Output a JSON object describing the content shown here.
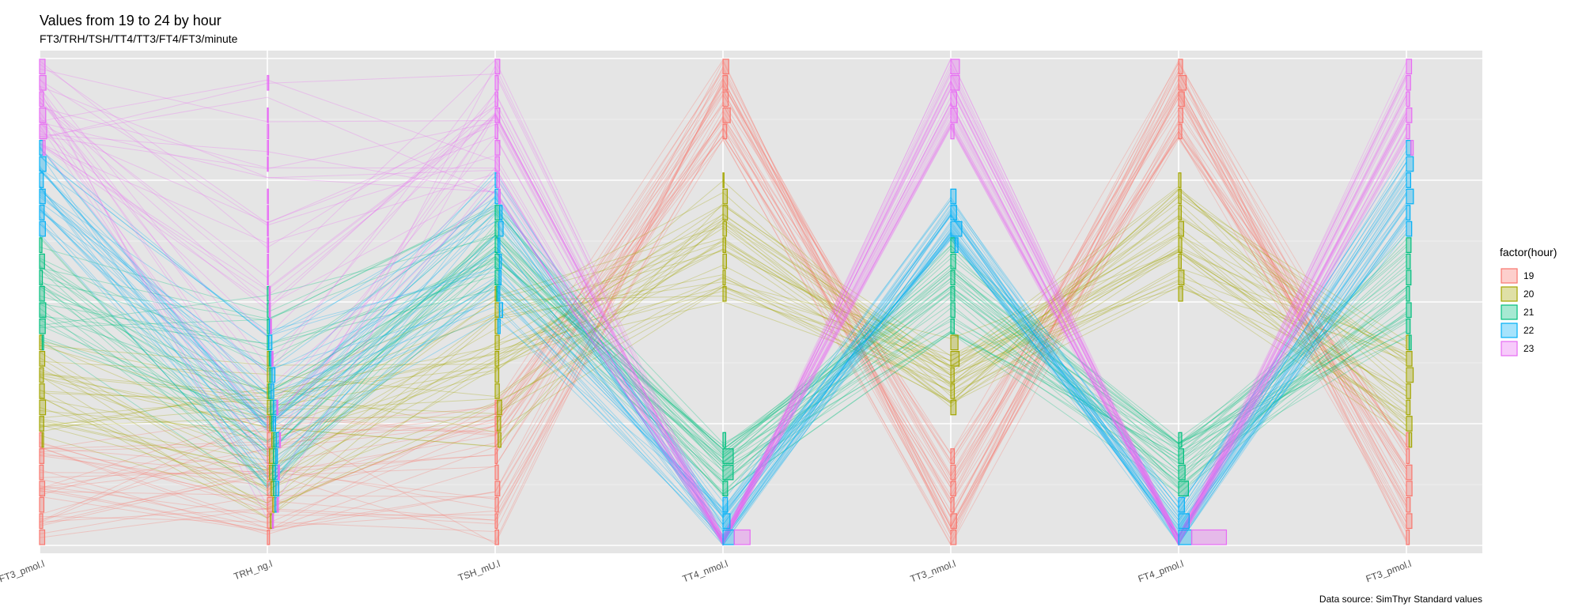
{
  "chart_data": {
    "type": "parallel-coordinates",
    "title": "Values from 19 to 24 by hour",
    "subtitle": "FT3/TRH/TSH/TT4/TT3/FT4/FT3/minute",
    "caption": "Data source: SimThyr Standard values",
    "axes": [
      "FT3_pmol.l",
      "TRH_ng.l",
      "TSH_mU.l",
      "TT4_nmol.l",
      "TT3_nmol.l",
      "FT4_pmol.l",
      "FT3_pmol.l"
    ],
    "ylim": [
      0,
      1
    ],
    "grid": true,
    "legend": {
      "title": "factor(hour)",
      "placement": "right",
      "entries": [
        "19",
        "20",
        "21",
        "22",
        "23"
      ]
    },
    "series_colors": {
      "19": "#F8766D",
      "20": "#A3A500",
      "21": "#00BF7D",
      "22": "#00B0F6",
      "23": "#E76BF3"
    },
    "series": [
      {
        "name": "19",
        "ranges": [
          [
            0.0,
            0.22
          ],
          [
            0.02,
            0.27
          ],
          [
            0.0,
            0.3
          ],
          [
            0.83,
            1.0
          ],
          [
            0.0,
            0.19
          ],
          [
            0.83,
            1.0
          ],
          [
            0.0,
            0.22
          ]
        ]
      },
      {
        "name": "20",
        "ranges": [
          [
            0.22,
            0.42
          ],
          [
            0.05,
            0.4
          ],
          [
            0.2,
            0.52
          ],
          [
            0.5,
            0.75
          ],
          [
            0.27,
            0.43
          ],
          [
            0.5,
            0.75
          ],
          [
            0.22,
            0.42
          ]
        ]
      },
      {
        "name": "21",
        "ranges": [
          [
            0.42,
            0.64
          ],
          [
            0.1,
            0.52
          ],
          [
            0.52,
            0.7
          ],
          [
            0.1,
            0.22
          ],
          [
            0.43,
            0.62
          ],
          [
            0.1,
            0.22
          ],
          [
            0.42,
            0.64
          ]
        ]
      },
      {
        "name": "22",
        "ranges": [
          [
            0.64,
            0.82
          ],
          [
            0.08,
            0.45
          ],
          [
            0.45,
            0.77
          ],
          [
            0.0,
            0.09
          ],
          [
            0.62,
            0.72
          ],
          [
            0.0,
            0.09
          ],
          [
            0.64,
            0.82
          ]
        ]
      },
      {
        "name": "23",
        "ranges": [
          [
            0.82,
            1.0
          ],
          [
            0.0,
            0.98
          ],
          [
            0.72,
            1.0
          ],
          [
            0.0,
            0.02
          ],
          [
            0.85,
            1.0
          ],
          [
            0.0,
            0.02
          ],
          [
            0.82,
            1.0
          ]
        ]
      }
    ]
  }
}
